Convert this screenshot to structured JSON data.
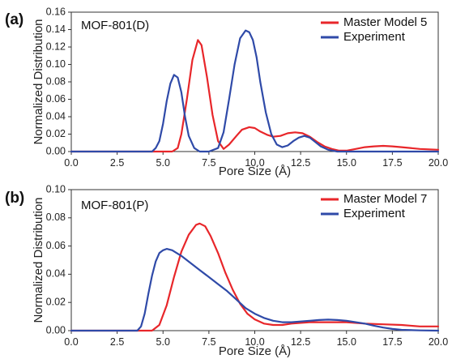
{
  "chart_data": [
    {
      "type": "line",
      "panel_label": "(a)",
      "title": "MOF-801(D)",
      "xlabel": "Pore Size (Å)",
      "ylabel": "Normalized Distribution",
      "xlim": [
        0,
        20
      ],
      "ylim": [
        0,
        0.16
      ],
      "xticks": [
        "0.0",
        "2.5",
        "5.0",
        "7.5",
        "10.0",
        "12.5",
        "15.0",
        "17.5",
        "20.0"
      ],
      "yticks": [
        "0.00",
        "0.02",
        "0.04",
        "0.06",
        "0.08",
        "0.10",
        "0.12",
        "0.14",
        "0.16"
      ],
      "legend_position": "top-right",
      "grid": false,
      "series": [
        {
          "name": "Master Model 5",
          "color": "#e8262a",
          "x": [
            0,
            5.5,
            5.8,
            6.0,
            6.3,
            6.6,
            6.9,
            7.1,
            7.4,
            7.7,
            8.0,
            8.3,
            8.6,
            9.0,
            9.3,
            9.7,
            10.0,
            10.3,
            10.7,
            11.0,
            11.4,
            11.8,
            12.2,
            12.6,
            13.0,
            13.4,
            13.8,
            14.2,
            14.6,
            15.0,
            15.5,
            16.0,
            16.5,
            17.0,
            17.5,
            18.0,
            19.0,
            20.0
          ],
          "y": [
            0,
            0,
            0.004,
            0.02,
            0.06,
            0.105,
            0.128,
            0.122,
            0.085,
            0.042,
            0.012,
            0.003,
            0.008,
            0.018,
            0.025,
            0.028,
            0.027,
            0.023,
            0.019,
            0.017,
            0.018,
            0.021,
            0.022,
            0.021,
            0.017,
            0.011,
            0.006,
            0.003,
            0.001,
            0.001,
            0.003,
            0.005,
            0.006,
            0.0065,
            0.006,
            0.005,
            0.003,
            0.002
          ]
        },
        {
          "name": "Experiment",
          "color": "#2f4aa8",
          "x": [
            0,
            4.4,
            4.6,
            4.8,
            5.0,
            5.2,
            5.4,
            5.6,
            5.8,
            6.0,
            6.2,
            6.4,
            6.7,
            7.0,
            7.5,
            8.0,
            8.3,
            8.6,
            8.9,
            9.2,
            9.5,
            9.7,
            9.9,
            10.1,
            10.3,
            10.6,
            10.9,
            11.2,
            11.5,
            11.8,
            12.1,
            12.4,
            12.7,
            13.0,
            13.3,
            13.6,
            14.0,
            14.5,
            15.0,
            20.0
          ],
          "y": [
            0,
            0,
            0.004,
            0.012,
            0.032,
            0.058,
            0.078,
            0.088,
            0.085,
            0.068,
            0.04,
            0.018,
            0.004,
            0,
            0,
            0.004,
            0.022,
            0.06,
            0.1,
            0.13,
            0.139,
            0.137,
            0.128,
            0.108,
            0.08,
            0.045,
            0.02,
            0.008,
            0.005,
            0.007,
            0.012,
            0.016,
            0.018,
            0.016,
            0.011,
            0.006,
            0.002,
            0,
            0,
            0
          ]
        }
      ]
    },
    {
      "type": "line",
      "panel_label": "(b)",
      "title": "MOF-801(P)",
      "xlabel": "Pore Size (Å)",
      "ylabel": "Normalized Distribution",
      "xlim": [
        0,
        20
      ],
      "ylim": [
        0,
        0.1
      ],
      "xticks": [
        "0.0",
        "2.5",
        "5.0",
        "7.5",
        "10.0",
        "12.5",
        "15.0",
        "17.5",
        "20.0"
      ],
      "yticks": [
        "0.00",
        "0.02",
        "0.04",
        "0.06",
        "0.08",
        "0.10"
      ],
      "legend_position": "top-right",
      "grid": false,
      "series": [
        {
          "name": "Master Model 7",
          "color": "#e8262a",
          "x": [
            0,
            4.4,
            4.8,
            5.2,
            5.6,
            6.0,
            6.4,
            6.8,
            7.0,
            7.3,
            7.6,
            8.0,
            8.4,
            8.8,
            9.2,
            9.6,
            10.0,
            10.5,
            11.0,
            11.5,
            12.0,
            13.0,
            14.0,
            15.0,
            16.0,
            17.0,
            18.0,
            19.0,
            20.0
          ],
          "y": [
            0,
            0,
            0.004,
            0.018,
            0.038,
            0.056,
            0.068,
            0.075,
            0.076,
            0.074,
            0.067,
            0.055,
            0.041,
            0.029,
            0.019,
            0.012,
            0.008,
            0.005,
            0.004,
            0.004,
            0.005,
            0.006,
            0.006,
            0.006,
            0.005,
            0.0045,
            0.004,
            0.003,
            0.003
          ]
        },
        {
          "name": "Experiment",
          "color": "#2f4aa8",
          "x": [
            0,
            3.6,
            3.8,
            4.0,
            4.2,
            4.4,
            4.6,
            4.8,
            5.0,
            5.2,
            5.5,
            6.0,
            6.5,
            7.0,
            7.5,
            8.0,
            8.5,
            9.0,
            9.5,
            10.0,
            10.5,
            11.0,
            11.5,
            12.0,
            12.5,
            13.0,
            13.5,
            14.0,
            14.5,
            15.0,
            15.5,
            16.0,
            16.5,
            17.0,
            17.5,
            18.0,
            19.0,
            20.0
          ],
          "y": [
            0,
            0,
            0.003,
            0.012,
            0.026,
            0.039,
            0.049,
            0.055,
            0.057,
            0.058,
            0.057,
            0.053,
            0.048,
            0.043,
            0.038,
            0.033,
            0.028,
            0.022,
            0.016,
            0.012,
            0.009,
            0.007,
            0.006,
            0.006,
            0.0065,
            0.007,
            0.0075,
            0.0078,
            0.0075,
            0.007,
            0.006,
            0.005,
            0.0035,
            0.0022,
            0.0012,
            0.0006,
            0.0002,
            0
          ]
        }
      ]
    }
  ]
}
